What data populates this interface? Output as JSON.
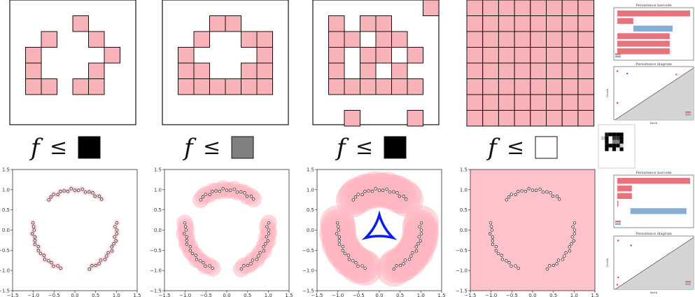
{
  "filtration_labels": [
    {
      "f": "f",
      "op": "≤",
      "swatch_color": "#000000"
    },
    {
      "f": "f",
      "op": "≤",
      "swatch_color": "#808080"
    },
    {
      "f": "f",
      "op": "≤",
      "swatch_color": "#000000"
    },
    {
      "f": "f",
      "op": "≤",
      "swatch_color": "#ffffff"
    }
  ],
  "grid_panels": [
    {
      "cells": [
        [
          4,
          1
        ],
        [
          2,
          2
        ],
        [
          5,
          2
        ],
        [
          1,
          3
        ],
        [
          6,
          3
        ],
        [
          1,
          4
        ],
        [
          5,
          4
        ],
        [
          1,
          5
        ],
        [
          2,
          5
        ],
        [
          4,
          5
        ],
        [
          5,
          5
        ]
      ]
    },
    {
      "cells": [
        [
          3,
          1
        ],
        [
          4,
          1
        ],
        [
          2,
          2
        ],
        [
          5,
          2
        ],
        [
          6,
          2
        ],
        [
          1,
          3
        ],
        [
          6,
          3
        ],
        [
          1,
          4
        ],
        [
          2,
          4
        ],
        [
          5,
          4
        ],
        [
          6,
          4
        ],
        [
          1,
          5
        ],
        [
          2,
          5
        ],
        [
          3,
          5
        ],
        [
          4,
          5
        ],
        [
          5,
          5
        ],
        [
          6,
          5
        ]
      ]
    },
    {
      "cells": [
        [
          7,
          0
        ],
        [
          1,
          1
        ],
        [
          3,
          1
        ],
        [
          4,
          1
        ],
        [
          1,
          2
        ],
        [
          2,
          2
        ],
        [
          4,
          2
        ],
        [
          5,
          2
        ],
        [
          1,
          3
        ],
        [
          3,
          3
        ],
        [
          4,
          3
        ],
        [
          6,
          3
        ],
        [
          1,
          4
        ],
        [
          3,
          4
        ],
        [
          5,
          4
        ],
        [
          1,
          5
        ],
        [
          2,
          5
        ],
        [
          3,
          5
        ],
        [
          4,
          5
        ],
        [
          5,
          5
        ],
        [
          6,
          5
        ],
        [
          2,
          7
        ],
        [
          6,
          7
        ]
      ]
    },
    {
      "full": true
    }
  ],
  "scatter_axes": {
    "ticks": [
      "−1.5",
      "−1.0",
      "−0.5",
      "0.0",
      "0.5",
      "1.0",
      "1.5"
    ],
    "xlim": [
      -1.5,
      1.5
    ],
    "ylim": [
      -1.5,
      1.5
    ]
  },
  "scatter_panels": [
    {
      "radius": 0.07
    },
    {
      "radius": 0.2
    },
    {
      "radius": 0.42,
      "loop": true
    },
    {
      "full": true
    }
  ],
  "side_panels": {
    "barcode_title": "Persistence barcode",
    "diagram_title": "Persistence diagram",
    "birth_label": "Birth",
    "death_label": "Death"
  },
  "colors": {
    "pink": "#f8b3b8",
    "blob": "#ffb6c1",
    "h0": "#e8737a",
    "h1": "#87afd4",
    "loop": "#0a1ee6",
    "diagram_fill": "#d4d4d4"
  },
  "chart_data": [
    {
      "type": "scatter",
      "title": "",
      "xlim": [
        -1.5,
        1.5
      ],
      "ylim": [
        -1.5,
        1.5
      ],
      "series": [
        {
          "arc_centers_deg": [
            90,
            210,
            330
          ],
          "arc_span_deg": 80,
          "radius": 1.0,
          "points_per_arc": 17
        }
      ]
    },
    {
      "type": "bar",
      "title": "Persistence barcode",
      "bars": [
        {
          "dim": 0,
          "start": 0.0,
          "end": 1.0
        },
        {
          "dim": 0,
          "start": 0.0,
          "end": 0.22
        },
        {
          "dim": 1,
          "start": 0.22,
          "end": 0.76
        },
        {
          "dim": 0,
          "start": 0.0,
          "end": 0.72
        },
        {
          "dim": 0,
          "start": 0.0,
          "end": 0.72
        },
        {
          "dim": 0,
          "start": 0.0,
          "end": 0.72
        }
      ]
    }
  ]
}
